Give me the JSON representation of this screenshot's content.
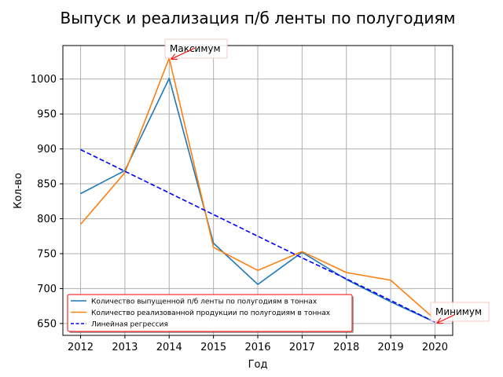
{
  "chart_data": {
    "type": "line",
    "title": "Выпуск и реализация п/б ленты по полугодиям",
    "xlabel": "Год",
    "ylabel": "Кол-во",
    "x": [
      2012,
      2013,
      2014,
      2015,
      2016,
      2017,
      2018,
      2019,
      2020
    ],
    "xlim": [
      2011.6,
      2020.4
    ],
    "ylim": [
      633,
      1048
    ],
    "yticks": [
      650,
      700,
      750,
      800,
      850,
      900,
      950,
      1000
    ],
    "grid": true,
    "legend_position": "lower-left",
    "series": [
      {
        "name": "Количество выпущенной п/б ленты по полугодиям в тоннах",
        "color": "#1f77b4",
        "style": "solid",
        "values": [
          836,
          869,
          1001,
          765,
          706,
          752,
          713,
          681,
          652
        ]
      },
      {
        "name": "Количество реализованной продукции по полугодиям в тоннах",
        "color": "#ff7f0e",
        "style": "solid",
        "values": [
          792,
          866,
          1030,
          759,
          726,
          753,
          723,
          712,
          656
        ]
      },
      {
        "name": "Линейная регрессия",
        "color": "#0000ff",
        "style": "dashed",
        "values": [
          899,
          868,
          837,
          806,
          775,
          744,
          714,
          683,
          652
        ]
      }
    ],
    "annotations": [
      {
        "text": "Максимум",
        "x": 2014,
        "y": 1030
      },
      {
        "text": "Минимум",
        "x": 2020,
        "y": 652
      }
    ]
  }
}
